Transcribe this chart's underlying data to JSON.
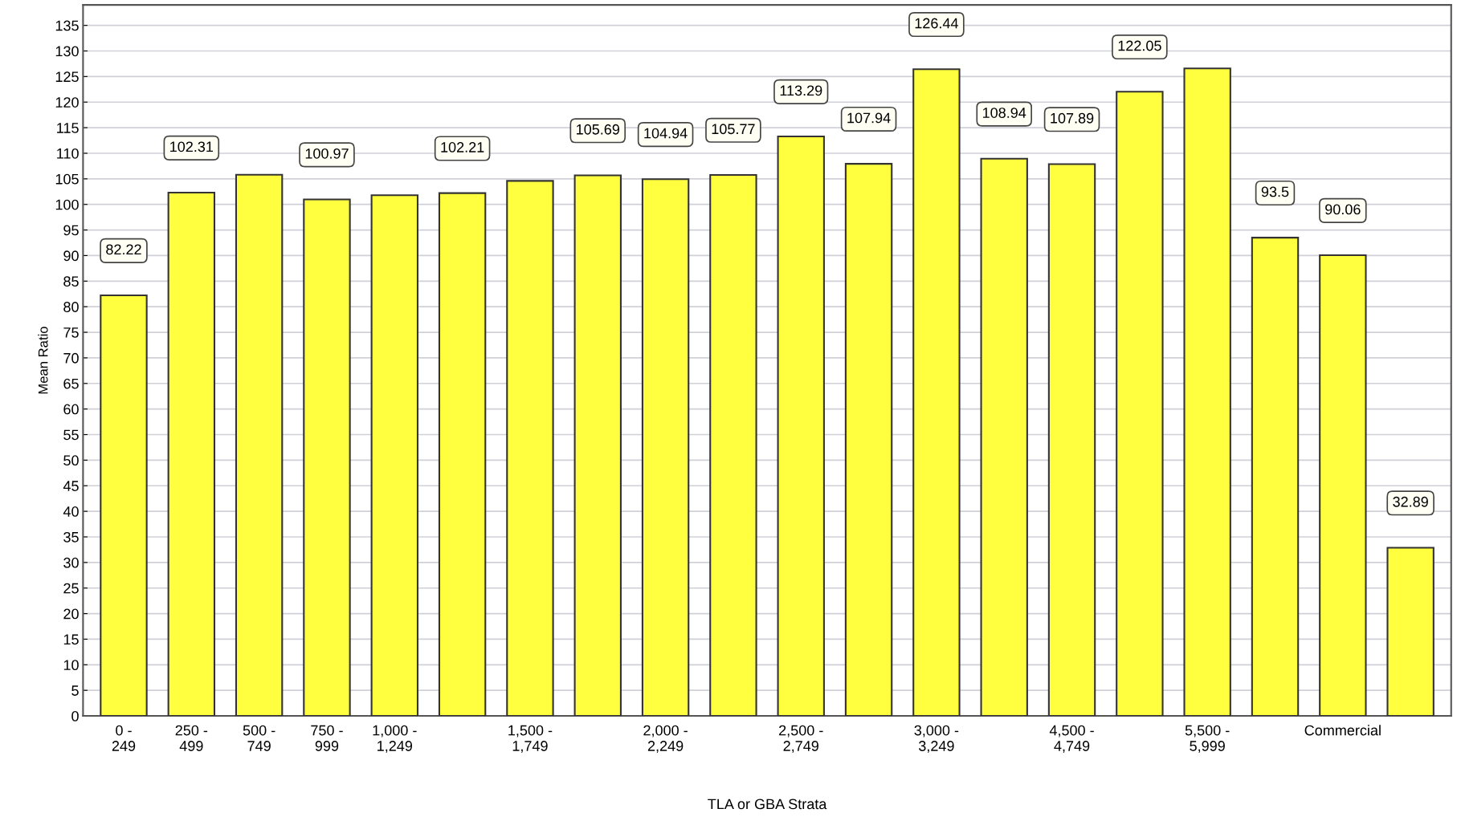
{
  "chart_data": {
    "type": "bar",
    "xlabel": "TLA or GBA Strata",
    "ylabel": "Mean Ratio",
    "categories": [
      "0 -\n249",
      "250 -\n499",
      "500 -\n749",
      "750 -\n999",
      "1,000 -\n1,249",
      null,
      "1,500 -\n1,749",
      null,
      "2,000 -\n2,249",
      null,
      "2,500 -\n2,749",
      null,
      "3,000 -\n3,249",
      null,
      "4,500 -\n4,749",
      null,
      "5,500 -\n5,999",
      null,
      "Commercial",
      null
    ],
    "values": [
      82.22,
      102.31,
      105.8,
      100.97,
      101.8,
      102.21,
      104.6,
      105.69,
      104.94,
      105.77,
      113.29,
      107.94,
      126.44,
      108.94,
      107.89,
      122.05,
      126.6,
      93.5,
      90.06,
      32.89
    ],
    "value_labels": [
      "82.22",
      "102.31",
      null,
      "100.97",
      null,
      "102.21",
      null,
      "105.69",
      "104.94",
      "105.77",
      "113.29",
      "107.94",
      "126.44",
      "108.94",
      "107.89",
      "122.05",
      null,
      "93.5",
      "90.06",
      "32.89"
    ],
    "color": "#ffff40",
    "ylim": [
      0,
      139
    ],
    "yticks": [
      0,
      5,
      10,
      15,
      20,
      25,
      30,
      35,
      40,
      45,
      50,
      55,
      60,
      65,
      70,
      75,
      80,
      85,
      90,
      95,
      100,
      105,
      110,
      115,
      120,
      125,
      130,
      135
    ],
    "grid": "y"
  }
}
